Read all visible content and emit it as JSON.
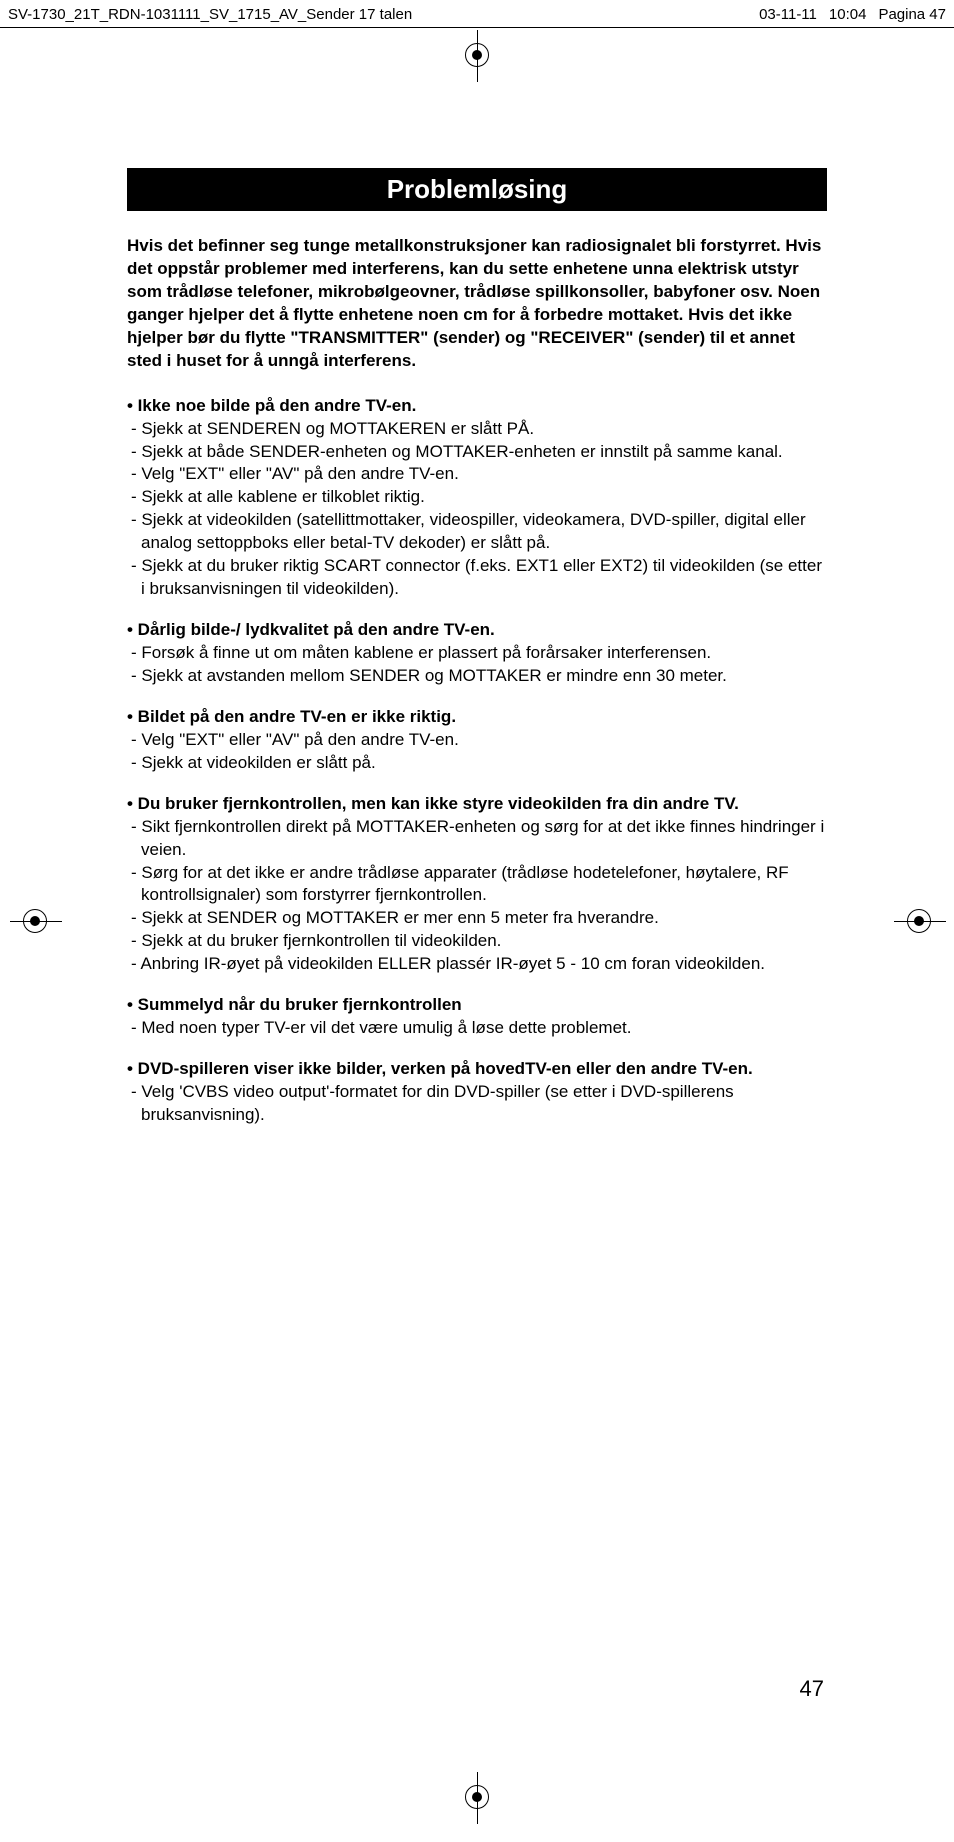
{
  "header": {
    "filename": "SV-1730_21T_RDN-1031111_SV_1715_AV_Sender 17 talen",
    "date": "03-11-11",
    "time": "10:04",
    "pagina": "Pagina 47"
  },
  "title": "Problemløsing",
  "intro": "Hvis det befinner seg tunge metallkonstruksjoner kan radiosignalet bli forstyrret. Hvis det oppstår problemer med interferens, kan du sette enhetene unna elektrisk utstyr som trådløse telefoner, mikrobølgeovner, trådløse spillkonsoller, babyfoner osv. Noen ganger hjelper det å flytte enhetene noen cm for å forbedre mottaket. Hvis det ikke hjelper bør du flytte \"TRANSMITTER\" (sender) og \"RECEIVER\" (sender) til et annet sted i huset for å unngå interferens.",
  "sections": [
    {
      "head": "• Ikke noe bilde på den andre TV-en.",
      "items": [
        "- Sjekk at SENDEREN og MOTTAKEREN er slått PÅ.",
        "- Sjekk at både SENDER-enheten og MOTTAKER-enheten er innstilt på samme kanal.",
        "- Velg \"EXT\" eller \"AV\" på den andre TV-en.",
        "- Sjekk at alle kablene er tilkoblet riktig.",
        "- Sjekk at videokilden (satellittmottaker, videospiller, videokamera, DVD-spiller, digital eller analog settoppboks eller betal-TV dekoder) er slått på.",
        "- Sjekk at du bruker riktig SCART connector (f.eks. EXT1 eller EXT2) til videokilden (se etter i bruksanvisningen til videokilden)."
      ]
    },
    {
      "head": "• Dårlig bilde-/ lydkvalitet på den andre TV-en.",
      "items": [
        "- Forsøk å finne ut om måten kablene er plassert på forårsaker interferensen.",
        "- Sjekk at avstanden mellom SENDER og MOTTAKER er mindre enn 30 meter."
      ]
    },
    {
      "head": "• Bildet på den andre TV-en er ikke riktig.",
      "items": [
        "- Velg \"EXT\" eller \"AV\" på den andre TV-en.",
        "- Sjekk at videokilden er slått på."
      ]
    },
    {
      "head": "• Du bruker fjernkontrollen, men kan ikke styre videokilden fra din andre TV.",
      "items": [
        "- Sikt fjernkontrollen direkt på MOTTAKER-enheten og sørg for at det ikke finnes hindringer i veien.",
        "- Sørg for at det ikke er andre trådløse apparater (trådløse hodetelefoner, høytalere, RF kontrollsignaler) som forstyrrer fjernkontrollen.",
        "- Sjekk at SENDER og MOTTAKER er mer enn 5 meter fra hverandre.",
        "- Sjekk at du bruker fjernkontrollen til videokilden.",
        "- Anbring IR-øyet på videokilden ELLER plassér IR-øyet 5 - 10 cm foran videokilden."
      ]
    },
    {
      "head": "• Summelyd når du bruker fjernkontrollen",
      "items": [
        "- Med noen typer TV-er vil det være umulig å løse dette problemet."
      ]
    },
    {
      "head": "• DVD-spilleren viser ikke bilder, verken på hovedTV-en eller den andre TV-en.",
      "items": [
        "- Velg 'CVBS video output'-formatet for din DVD-spiller (se etter i DVD-spillerens bruksanvisning)."
      ]
    }
  ],
  "page_number": "47"
}
